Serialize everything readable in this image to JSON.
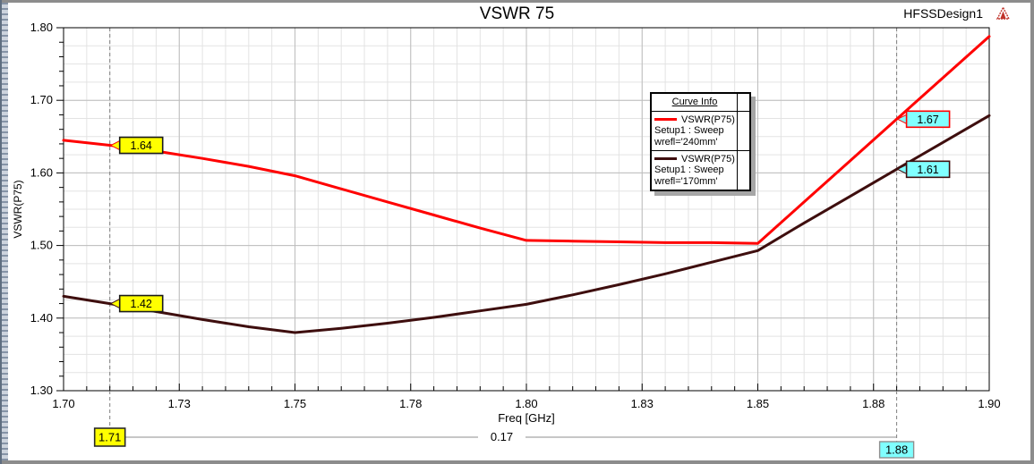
{
  "window": {
    "title": "VSWR 75",
    "design_name": "HFSSDesign1",
    "logo_color": "#c0342b"
  },
  "legend": {
    "header": "Curve Info",
    "entries": [
      {
        "name": "VSWR(P75)",
        "setup": "Setup1 : Sweep",
        "variation": "wrefl='240mm'",
        "color": "#FF0000"
      },
      {
        "name": "VSWR(P75)",
        "setup": "Setup1 : Sweep",
        "variation": "wrefl='170mm'",
        "color": "#3E0E0E"
      }
    ]
  },
  "chart_data": {
    "type": "line",
    "title": "VSWR 75",
    "xlabel": "Freq [GHz]",
    "ylabel": "VSWR(P75)",
    "xlim": [
      1.7,
      1.9
    ],
    "ylim": [
      1.3,
      1.8
    ],
    "grid": true,
    "legend_position": "upper right inside",
    "x_major_ticks": [
      1.7,
      1.725,
      1.75,
      1.775,
      1.8,
      1.825,
      1.85,
      1.875,
      1.9
    ],
    "x_tick_labels": [
      "1.70",
      "1.73",
      "1.75",
      "1.78",
      "1.80",
      "1.83",
      "1.85",
      "1.88",
      "1.90"
    ],
    "x_minor_step": 0.005,
    "y_major_ticks": [
      1.3,
      1.4,
      1.5,
      1.6,
      1.7,
      1.8
    ],
    "y_tick_labels": [
      "1.30",
      "1.40",
      "1.50",
      "1.60",
      "1.70",
      "1.80"
    ],
    "y_minor_tick_step": 0.02,
    "y_minor_grid_step": 0.025,
    "x": [
      1.7,
      1.71,
      1.72,
      1.73,
      1.74,
      1.75,
      1.76,
      1.77,
      1.78,
      1.79,
      1.8,
      1.81,
      1.82,
      1.83,
      1.84,
      1.85,
      1.86,
      1.87,
      1.88,
      1.89,
      1.9
    ],
    "series": [
      {
        "name": "VSWR(P75)",
        "setup": "Setup1 : Sweep",
        "variation": "wrefl='240mm'",
        "color": "#FF0000",
        "values": [
          1.645,
          1.638,
          1.63,
          1.62,
          1.609,
          1.596,
          1.578,
          1.56,
          1.542,
          1.524,
          1.507,
          1.506,
          1.505,
          1.504,
          1.504,
          1.503,
          1.56,
          1.617,
          1.674,
          1.731,
          1.788
        ]
      },
      {
        "name": "VSWR(P75)",
        "setup": "Setup1 : Sweep",
        "variation": "wrefl='170mm'",
        "color": "#3E0E0E",
        "values": [
          1.43,
          1.42,
          1.409,
          1.398,
          1.388,
          1.38,
          1.386,
          1.393,
          1.401,
          1.41,
          1.419,
          1.432,
          1.446,
          1.461,
          1.477,
          1.493,
          1.531,
          1.568,
          1.605,
          1.642,
          1.679
        ]
      }
    ],
    "markers": [
      {
        "x": 1.71,
        "x_label": "1.71",
        "fill": "#FFFF00",
        "x_box_border": "#2a2a2a",
        "points": [
          {
            "series": 0,
            "value": 1.638,
            "label": "1.64",
            "box_border": "#1a1a1a"
          },
          {
            "series": 1,
            "value": 1.42,
            "label": "1.42",
            "box_border": "#1a1a1a"
          }
        ]
      },
      {
        "x": 1.88,
        "x_label": "1.88",
        "fill": "#80FFFF",
        "x_box_border": "#8f8f8f",
        "points": [
          {
            "series": 0,
            "value": 1.674,
            "label": "1.67",
            "box_border": "#FF0000"
          },
          {
            "series": 1,
            "value": 1.605,
            "label": "1.61",
            "box_border": "#3E0E0E"
          }
        ]
      }
    ],
    "delta_label": "0.17"
  }
}
